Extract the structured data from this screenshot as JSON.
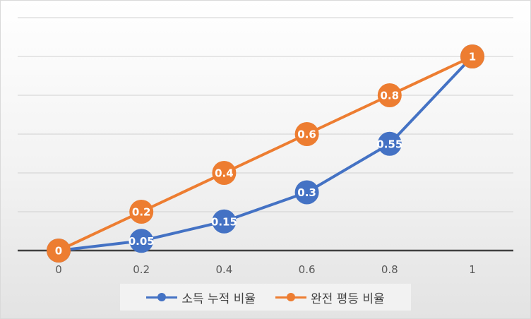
{
  "chart_data": {
    "type": "line",
    "title": "",
    "xlabel": "",
    "ylabel": "",
    "x": [
      0,
      0.2,
      0.4,
      0.6,
      0.8,
      1
    ],
    "x_tick_labels": [
      "0",
      "0.2",
      "0.4",
      "0.6",
      "0.8",
      "1"
    ],
    "ylim": [
      0,
      1.2
    ],
    "y_tick_labels_visible": false,
    "grid": "horizontal",
    "legend_position": "bottom",
    "series": [
      {
        "name": "소득 누적 비율",
        "color": "#4472C4",
        "values": [
          0,
          0.05,
          0.15,
          0.3,
          0.55,
          1
        ],
        "labels": [
          "0",
          "0.05",
          "0.15",
          "0.3",
          "0.55",
          "1"
        ]
      },
      {
        "name": "완전 평등 비율",
        "color": "#ED7D31",
        "values": [
          0,
          0.2,
          0.4,
          0.6,
          0.8,
          1
        ],
        "labels": [
          "0",
          "0.2",
          "0.4",
          "0.6",
          "0.8",
          "1"
        ]
      }
    ]
  }
}
